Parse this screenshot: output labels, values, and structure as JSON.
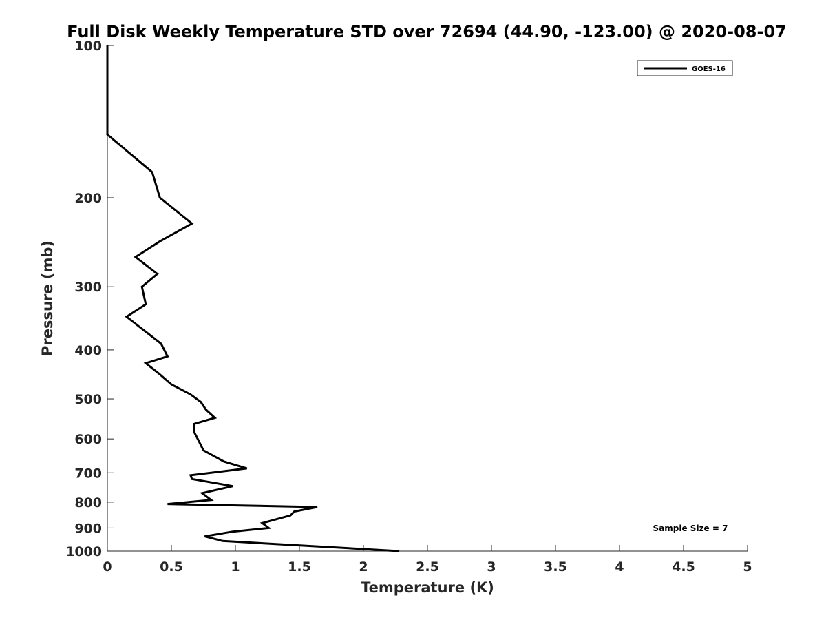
{
  "chart_data": {
    "type": "line",
    "title": "Full Disk Weekly Temperature STD over 72694 (44.90, -123.00) @ 2020-08-07",
    "xlabel": "Temperature (K)",
    "ylabel": "Pressure (mb)",
    "xlim": [
      0,
      5
    ],
    "ylim": [
      100,
      1000
    ],
    "yscale": "log",
    "y_reversed": true,
    "xticks": [
      0,
      0.5,
      1,
      1.5,
      2,
      2.5,
      3,
      3.5,
      4,
      4.5,
      5
    ],
    "xtick_labels": [
      "0",
      "0.5",
      "1",
      "1.5",
      "2",
      "2.5",
      "3",
      "3.5",
      "4",
      "4.5",
      "5"
    ],
    "yticks": [
      100,
      200,
      300,
      400,
      500,
      600,
      700,
      800,
      900,
      1000
    ],
    "ytick_labels": [
      "100",
      "200",
      "300",
      "400",
      "500",
      "600",
      "700",
      "800",
      "900",
      "1000"
    ],
    "grid": false,
    "legend_position": "top-right",
    "annotation": "Sample Size = 7",
    "series": [
      {
        "name": "GOES-16",
        "color": "#000000",
        "x": [
          0,
          0,
          0,
          0.35,
          0.41,
          0.66,
          0.41,
          0.22,
          0.39,
          0.27,
          0.3,
          0.15,
          0.28,
          0.42,
          0.47,
          0.3,
          0.4,
          0.5,
          0.65,
          0.73,
          0.77,
          0.84,
          0.68,
          0.68,
          0.71,
          0.75,
          0.91,
          1.09,
          0.65,
          0.66,
          0.98,
          0.74,
          0.81,
          0.47,
          1.64,
          1.46,
          1.43,
          1.21,
          1.26,
          0.98,
          0.76,
          0.9,
          2.28
        ],
        "y": [
          100,
          130,
          150,
          178,
          200,
          225,
          244,
          262,
          283,
          300,
          325,
          344,
          365,
          389,
          412,
          425,
          445,
          468,
          490,
          507,
          525,
          545,
          560,
          583,
          603,
          632,
          665,
          686,
          708,
          720,
          744,
          768,
          792,
          807,
          818,
          835,
          850,
          880,
          900,
          915,
          935,
          955,
          1000
        ]
      }
    ]
  }
}
